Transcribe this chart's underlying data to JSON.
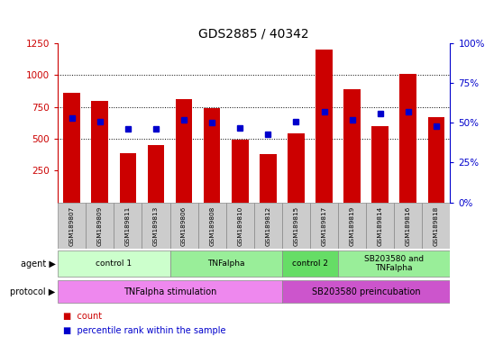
{
  "title": "GDS2885 / 40342",
  "samples": [
    "GSM189807",
    "GSM189809",
    "GSM189811",
    "GSM189813",
    "GSM189806",
    "GSM189808",
    "GSM189810",
    "GSM189812",
    "GSM189815",
    "GSM189817",
    "GSM189819",
    "GSM189814",
    "GSM189816",
    "GSM189818"
  ],
  "counts": [
    860,
    800,
    390,
    450,
    810,
    740,
    490,
    380,
    540,
    1200,
    890,
    600,
    1010,
    670
  ],
  "percentiles": [
    53,
    51,
    46,
    46,
    52,
    50,
    47,
    43,
    51,
    57,
    52,
    56,
    57,
    48
  ],
  "ylim_left": [
    0,
    1250
  ],
  "ylim_right": [
    0,
    100
  ],
  "yticks_left": [
    250,
    500,
    750,
    1000,
    1250
  ],
  "yticks_right": [
    0,
    25,
    50,
    75,
    100
  ],
  "bar_color": "#cc0000",
  "dot_color": "#0000cc",
  "agent_groups": [
    {
      "label": "control 1",
      "start": 0,
      "end": 4,
      "color": "#ccffcc"
    },
    {
      "label": "TNFalpha",
      "start": 4,
      "end": 8,
      "color": "#99ee99"
    },
    {
      "label": "control 2",
      "start": 8,
      "end": 10,
      "color": "#66dd66"
    },
    {
      "label": "SB203580 and\nTNFalpha",
      "start": 10,
      "end": 14,
      "color": "#99ee99"
    }
  ],
  "protocol_groups": [
    {
      "label": "TNFalpha stimulation",
      "start": 0,
      "end": 8,
      "color": "#ee88ee"
    },
    {
      "label": "SB203580 preincubation",
      "start": 8,
      "end": 14,
      "color": "#cc55cc"
    }
  ],
  "bg_color": "#ffffff"
}
